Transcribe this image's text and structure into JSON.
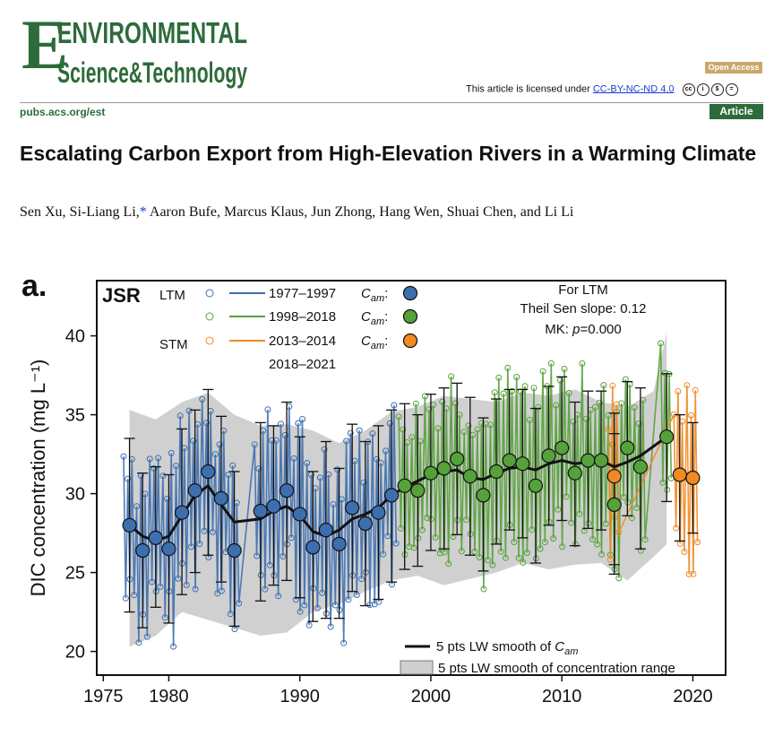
{
  "journal": {
    "logo_line1": "ENVIRONMENTAL",
    "logo_line2": "Science&Technology",
    "open_access": "Open Access",
    "license_prefix": "This article is licensed under",
    "license_link": "CC-BY-NC-ND 4.0",
    "url": "pubs.acs.org/est",
    "article_type": "Article",
    "brand_color": "#2d6b3a"
  },
  "paper": {
    "title": "Escalating Carbon Export from High-Elevation Rivers in a Warming Climate",
    "authors_a": "Sen Xu, Si-Liang Li,",
    "authors_star": "*",
    "authors_b": " Aaron Bufe, Marcus Klaus, Jun Zhong, Hang Wen, Shuai Chen, and Li Li"
  },
  "chart_data": {
    "type": "scatter",
    "panel_label": "a.",
    "site": "JSR",
    "ylabel": "DIC concentration (mg L⁻¹)",
    "xlim": [
      1974.5,
      2022.5
    ],
    "ylim": [
      18.5,
      43.5
    ],
    "xticks": [
      1975,
      1980,
      1990,
      2000,
      2010,
      2020
    ],
    "yticks": [
      20,
      25,
      30,
      35,
      40
    ],
    "grid": false,
    "legend_top": {
      "ltm_label": "LTM",
      "stm_label": "STM",
      "rows": [
        "1977–1997",
        "1998–2018",
        "2013–2014",
        "2018–2021"
      ],
      "cam_label": "C",
      "cam_sub": "am",
      "colors": [
        "#3d6fb0",
        "#55a13a",
        "#f08a24"
      ]
    },
    "stats": {
      "line1": "For LTM",
      "line2": "Theil Sen slope: 0.12",
      "line3_prefix": "MK: ",
      "line3_p": "p",
      "line3_value": "=0.000"
    },
    "legend_bottom": {
      "line_label": "5 pts LW smooth of ",
      "line_var": "C",
      "line_sub": "am",
      "band_label": "5 pts LW smooth of concentration range"
    },
    "cam_blue": [
      [
        1977,
        28.0
      ],
      [
        1978,
        26.4
      ],
      [
        1979,
        27.2
      ],
      [
        1980,
        26.5
      ],
      [
        1981,
        28.8
      ],
      [
        1982,
        30.2
      ],
      [
        1983,
        31.4
      ],
      [
        1984,
        29.7
      ],
      [
        1985,
        26.4
      ],
      [
        1987,
        28.9
      ],
      [
        1988,
        29.2
      ],
      [
        1989,
        30.2
      ],
      [
        1990,
        28.7
      ],
      [
        1991,
        26.6
      ],
      [
        1992,
        27.7
      ],
      [
        1993,
        26.8
      ],
      [
        1994,
        29.1
      ],
      [
        1995,
        28.1
      ],
      [
        1996,
        28.8
      ],
      [
        1997,
        29.9
      ]
    ],
    "cam_green": [
      [
        1998,
        30.5
      ],
      [
        1999,
        30.2
      ],
      [
        2000,
        31.3
      ],
      [
        2001,
        31.6
      ],
      [
        2002,
        32.2
      ],
      [
        2003,
        31.1
      ],
      [
        2004,
        29.9
      ],
      [
        2005,
        31.4
      ],
      [
        2006,
        32.1
      ],
      [
        2007,
        31.9
      ],
      [
        2008,
        30.5
      ],
      [
        2009,
        32.4
      ],
      [
        2010,
        32.9
      ],
      [
        2011,
        31.3
      ],
      [
        2012,
        32.1
      ],
      [
        2013,
        32.1
      ],
      [
        2014,
        29.3
      ],
      [
        2015,
        32.9
      ],
      [
        2016,
        31.7
      ],
      [
        2018,
        33.6
      ]
    ],
    "cam_orange": [
      [
        2014,
        31.1
      ],
      [
        2019,
        31.2
      ],
      [
        2020,
        31.0
      ]
    ],
    "smooth_cam": [
      [
        1977,
        28.0
      ],
      [
        1978,
        27.3
      ],
      [
        1979,
        27.0
      ],
      [
        1980,
        27.3
      ],
      [
        1981,
        28.6
      ],
      [
        1982,
        29.9
      ],
      [
        1983,
        30.5
      ],
      [
        1984,
        29.3
      ],
      [
        1985,
        28.2
      ],
      [
        1987,
        28.4
      ],
      [
        1988,
        28.9
      ],
      [
        1989,
        29.2
      ],
      [
        1990,
        28.6
      ],
      [
        1991,
        27.6
      ],
      [
        1992,
        27.3
      ],
      [
        1993,
        27.7
      ],
      [
        1994,
        28.4
      ],
      [
        1995,
        28.7
      ],
      [
        1996,
        29.1
      ],
      [
        1997,
        29.9
      ],
      [
        1998,
        30.4
      ],
      [
        1999,
        30.8
      ],
      [
        2000,
        31.2
      ],
      [
        2001,
        31.4
      ],
      [
        2002,
        31.5
      ],
      [
        2003,
        31.0
      ],
      [
        2004,
        30.9
      ],
      [
        2005,
        31.3
      ],
      [
        2006,
        31.6
      ],
      [
        2007,
        31.7
      ],
      [
        2008,
        31.5
      ],
      [
        2009,
        31.9
      ],
      [
        2010,
        32.1
      ],
      [
        2011,
        31.9
      ],
      [
        2012,
        32.0
      ],
      [
        2013,
        32.1
      ],
      [
        2014,
        31.7
      ],
      [
        2015,
        32.0
      ],
      [
        2016,
        32.4
      ],
      [
        2018,
        33.6
      ]
    ],
    "band": [
      [
        1977,
        20.3,
        35.3
      ],
      [
        1979,
        21.0,
        34.7
      ],
      [
        1981,
        22.5,
        35.8
      ],
      [
        1983,
        22.0,
        36.4
      ],
      [
        1985,
        21.5,
        35.0
      ],
      [
        1987,
        21.0,
        34.3
      ],
      [
        1989,
        21.2,
        34.4
      ],
      [
        1991,
        22.5,
        34.0
      ],
      [
        1993,
        23.0,
        33.2
      ],
      [
        1995,
        23.8,
        34.0
      ],
      [
        1997,
        24.5,
        35.2
      ],
      [
        1999,
        24.8,
        35.5
      ],
      [
        2001,
        24.2,
        36.2
      ],
      [
        2003,
        24.6,
        36.0
      ],
      [
        2005,
        25.0,
        35.8
      ],
      [
        2007,
        25.6,
        36.4
      ],
      [
        2009,
        25.2,
        36.2
      ],
      [
        2011,
        25.5,
        36.6
      ],
      [
        2013,
        25.6,
        35.8
      ],
      [
        2015,
        24.5,
        35.5
      ],
      [
        2017,
        26.0,
        36.5
      ],
      [
        2018,
        26.8,
        40.2
      ]
    ],
    "error_blue": [
      [
        1977,
        22.5,
        33.5
      ],
      [
        1978,
        21.5,
        31.3
      ],
      [
        1979,
        22.8,
        31.7
      ],
      [
        1980,
        21.8,
        31.2
      ],
      [
        1981,
        23.6,
        34.1
      ],
      [
        1982,
        25.0,
        35.3
      ],
      [
        1983,
        26.1,
        36.6
      ],
      [
        1984,
        24.4,
        34.9
      ],
      [
        1985,
        21.6,
        31.4
      ],
      [
        1987,
        23.2,
        34.5
      ],
      [
        1988,
        24.2,
        34.3
      ],
      [
        1989,
        24.5,
        35.8
      ],
      [
        1990,
        23.4,
        33.6
      ],
      [
        1991,
        21.9,
        31.4
      ],
      [
        1992,
        22.1,
        33.3
      ],
      [
        1993,
        22.1,
        31.6
      ],
      [
        1994,
        23.8,
        34.4
      ],
      [
        1995,
        22.9,
        33.3
      ],
      [
        1996,
        23.3,
        34.3
      ],
      [
        1997,
        24.4,
        35.3
      ]
    ],
    "error_green": [
      [
        1998,
        25.2,
        35.7
      ],
      [
        1999,
        25.4,
        35.0
      ],
      [
        2000,
        26.4,
        36.3
      ],
      [
        2001,
        26.5,
        36.7
      ],
      [
        2002,
        27.4,
        37.0
      ],
      [
        2003,
        26.1,
        36.1
      ],
      [
        2004,
        25.1,
        34.8
      ],
      [
        2005,
        26.8,
        36.0
      ],
      [
        2006,
        27.7,
        36.6
      ],
      [
        2007,
        27.2,
        36.6
      ],
      [
        2008,
        25.6,
        35.4
      ],
      [
        2009,
        28.0,
        36.8
      ],
      [
        2010,
        28.3,
        37.4
      ],
      [
        2011,
        26.7,
        35.8
      ],
      [
        2012,
        27.8,
        36.5
      ],
      [
        2013,
        27.7,
        36.5
      ],
      [
        2014,
        24.9,
        33.8
      ],
      [
        2015,
        28.6,
        37.1
      ],
      [
        2016,
        26.5,
        36.7
      ],
      [
        2018,
        29.5,
        37.6
      ]
    ],
    "error_orange": [
      [
        2014,
        25.5,
        35.1
      ],
      [
        2019,
        27.0,
        35.0
      ],
      [
        2020,
        27.5,
        34.5
      ]
    ]
  }
}
